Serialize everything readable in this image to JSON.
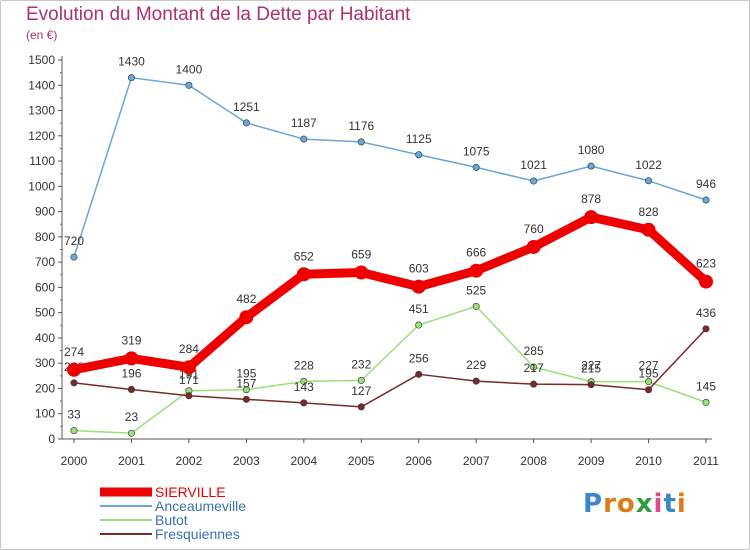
{
  "title": "Evolution du Montant de la Dette par Habitant",
  "subtitle": "(en €)",
  "logo": {
    "text": "Proxiti",
    "letter_colors": [
      "#3a86c8",
      "#e07b1a",
      "#e07b1a",
      "#2f9e3a",
      "#e04a8a",
      "#3a86c8",
      "#e07b1a"
    ]
  },
  "chart_data": {
    "type": "line",
    "x": [
      "2000",
      "2001",
      "2002",
      "2003",
      "2004",
      "2005",
      "2006",
      "2007",
      "2008",
      "2009",
      "2010",
      "2011"
    ],
    "ylim": [
      0,
      1500
    ],
    "yticks": [
      0,
      100,
      200,
      300,
      400,
      500,
      600,
      700,
      800,
      900,
      1000,
      1100,
      1200,
      1300,
      1400,
      1500
    ],
    "grid": false,
    "legend_position": "bottom-left",
    "series": [
      {
        "name": "SIERVILLE",
        "color": "#ee0000",
        "values": [
          274,
          319,
          284,
          482,
          652,
          659,
          603,
          666,
          760,
          878,
          828,
          623
        ]
      },
      {
        "name": "Anceaumeville",
        "color": "#6aa6d8",
        "values": [
          720,
          1430,
          1400,
          1251,
          1187,
          1176,
          1125,
          1075,
          1021,
          1080,
          1022,
          946
        ]
      },
      {
        "name": "Butot",
        "color": "#99e07a",
        "values": [
          33,
          23,
          191,
          195,
          228,
          232,
          451,
          525,
          285,
          227,
          227,
          145
        ]
      },
      {
        "name": "Fresquiennes",
        "color": "#7a2a2a",
        "values": [
          222,
          196,
          171,
          157,
          143,
          127,
          256,
          229,
          217,
          215,
          195,
          436
        ]
      }
    ]
  }
}
